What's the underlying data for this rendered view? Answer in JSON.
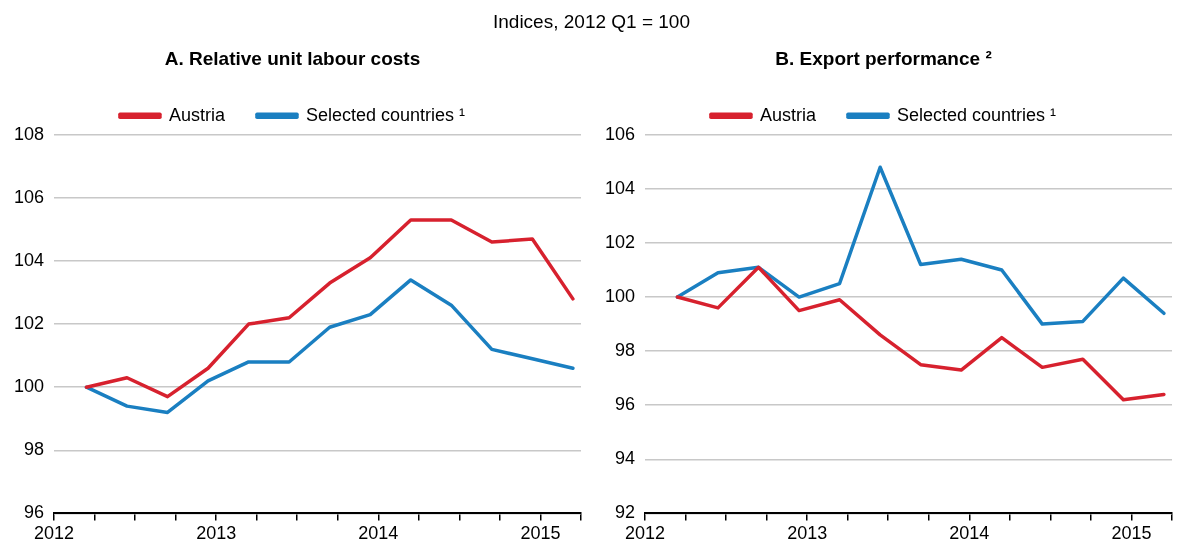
{
  "chart_data": [
    {
      "type": "line",
      "subtitle": "Indices, 2012 Q1 = 100",
      "title": "A. Relative unit labour costs",
      "x": [
        2012.2,
        2012.45,
        2012.7,
        2012.95,
        2013.2,
        2013.45,
        2013.7,
        2013.95,
        2014.2,
        2014.45,
        2014.7,
        2014.95,
        2015.2
      ],
      "series": [
        {
          "name": "Austria",
          "color": "#d7212e",
          "values": [
            100,
            100.3,
            99.7,
            100.6,
            102.0,
            102.2,
            103.3,
            104.1,
            105.3,
            105.3,
            104.6,
            104.7,
            102.8
          ]
        },
        {
          "name": "Selected countries ¹",
          "color": "#1a7fc1",
          "values": [
            100,
            99.4,
            99.2,
            100.2,
            100.8,
            100.8,
            101.9,
            102.3,
            103.4,
            102.6,
            101.2,
            100.9,
            100.6
          ]
        }
      ],
      "xlim": [
        2012,
        2015.25
      ],
      "xticks": [
        2012,
        {
          "value": 2012.25,
          "label": null
        },
        {
          "value": 2012.5,
          "label": null
        },
        {
          "value": 2012.75,
          "label": null
        },
        2013,
        {
          "value": 2013.25,
          "label": null
        },
        {
          "value": 2013.5,
          "label": null
        },
        {
          "value": 2013.75,
          "label": null
        },
        2014,
        {
          "value": 2014.25,
          "label": null
        },
        {
          "value": 2014.5,
          "label": null
        },
        {
          "value": 2014.75,
          "label": null
        },
        2015,
        {
          "value": 2015.25,
          "label": null
        }
      ],
      "ylim": [
        96,
        108
      ],
      "yticks": [
        96,
        98,
        100,
        102,
        104,
        106,
        108
      ],
      "grid": "y",
      "legend": "top",
      "marker": "none",
      "line_style": "solid"
    },
    {
      "type": "line",
      "title": "B. Export performance ²",
      "x": [
        2012.2,
        2012.45,
        2012.7,
        2012.95,
        2013.2,
        2013.45,
        2013.7,
        2013.95,
        2014.2,
        2014.45,
        2014.7,
        2014.95,
        2015.2
      ],
      "series": [
        {
          "name": "Austria",
          "color": "#d7212e",
          "values": [
            100,
            99.6,
            101.1,
            99.5,
            99.9,
            98.6,
            97.5,
            97.3,
            98.5,
            97.4,
            97.7,
            96.2,
            96.4
          ]
        },
        {
          "name": "Selected countries ¹",
          "color": "#1a7fc1",
          "values": [
            100,
            100.9,
            101.1,
            100.0,
            100.5,
            104.8,
            101.2,
            101.4,
            101.0,
            99.0,
            99.1,
            100.7,
            99.4
          ]
        }
      ],
      "xlim": [
        2012,
        2015.25
      ],
      "xticks": [
        2012,
        {
          "value": 2012.25,
          "label": null
        },
        {
          "value": 2012.5,
          "label": null
        },
        {
          "value": 2012.75,
          "label": null
        },
        2013,
        {
          "value": 2013.25,
          "label": null
        },
        {
          "value": 2013.5,
          "label": null
        },
        {
          "value": 2013.75,
          "label": null
        },
        2014,
        {
          "value": 2014.25,
          "label": null
        },
        {
          "value": 2014.5,
          "label": null
        },
        {
          "value": 2014.75,
          "label": null
        },
        2015,
        {
          "value": 2015.25,
          "label": null
        }
      ],
      "ylim": [
        92,
        106
      ],
      "yticks": [
        92,
        94,
        96,
        98,
        100,
        102,
        104,
        106
      ],
      "grid": "y",
      "legend": "top",
      "marker": "none",
      "line_style": "solid"
    }
  ]
}
